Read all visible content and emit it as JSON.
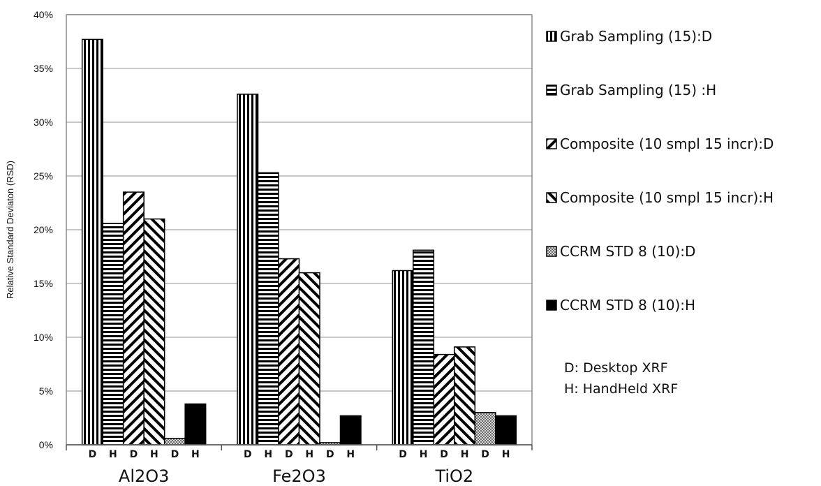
{
  "chart_data": {
    "type": "bar",
    "categories": [
      "Al2O3",
      "Fe2O3",
      "TiO2"
    ],
    "sub_labels": [
      "D",
      "H",
      "D",
      "H",
      "D",
      "H"
    ],
    "ylabel": "Relative Standard Deviaton (RSD)",
    "xlabel": "",
    "ylim": [
      0,
      40
    ],
    "yticks": [
      "0%",
      "5%",
      "10%",
      "15%",
      "20%",
      "25%",
      "30%",
      "35%",
      "40%"
    ],
    "grid": true,
    "legend_position": "right",
    "series": [
      {
        "name": "Grab Sampling (15):D",
        "pattern": "vertical",
        "values": [
          37.7,
          32.6,
          16.2
        ]
      },
      {
        "name": "Grab Sampling (15) :H",
        "pattern": "horizontal",
        "values": [
          20.6,
          25.3,
          18.1
        ]
      },
      {
        "name": "Composite (10 smpl 15 incr):D",
        "pattern": "diag-up",
        "values": [
          23.5,
          17.3,
          8.4
        ]
      },
      {
        "name": "Composite (10 smpl 15 incr):H",
        "pattern": "diag-down",
        "values": [
          21.0,
          16.0,
          9.1
        ]
      },
      {
        "name": "CCRM STD 8 (10):D",
        "pattern": "checker",
        "values": [
          0.6,
          0.2,
          3.0
        ]
      },
      {
        "name": "CCRM STD 8 (10):H",
        "pattern": "solid",
        "values": [
          3.8,
          2.7,
          2.7
        ]
      }
    ],
    "annotations": [
      "D: Desktop XRF",
      "H: HandHeld XRF"
    ]
  },
  "colors": {
    "bar_outline": "#000000",
    "gridline": "#b5b5b5",
    "solid_fill": "#000000",
    "checker_fill": "#8c8c8c"
  }
}
